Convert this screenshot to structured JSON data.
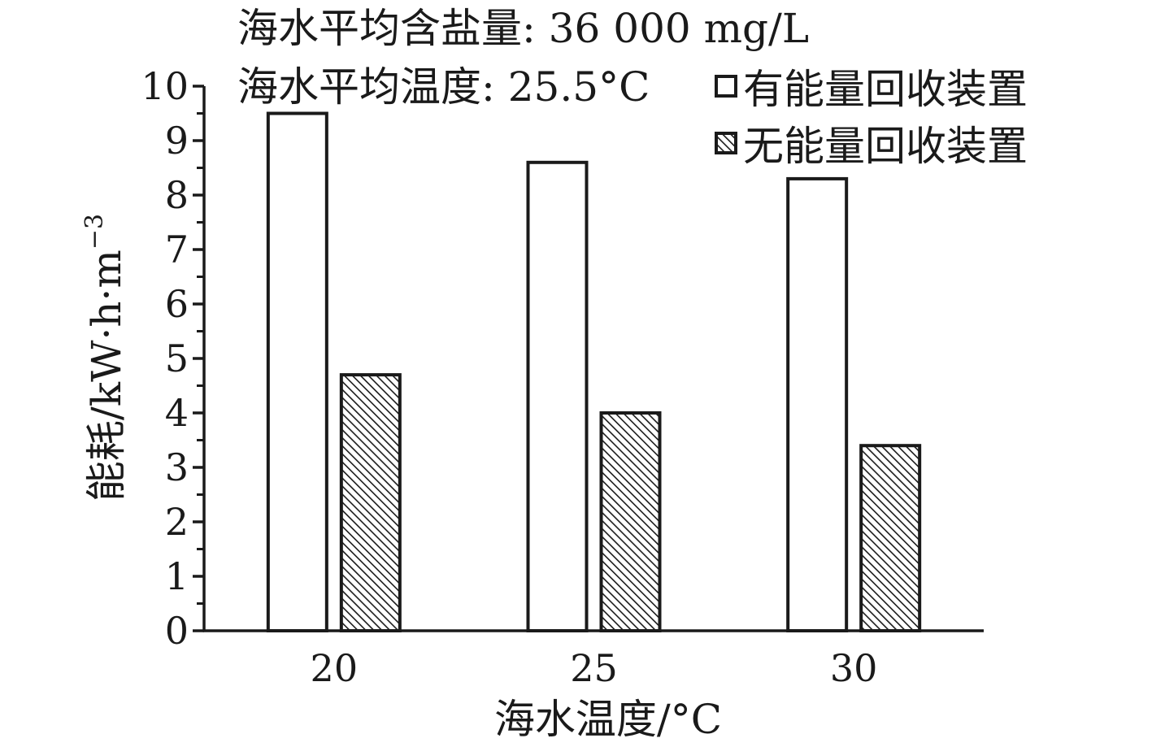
{
  "chart_data": {
    "type": "bar",
    "categories": [
      "20",
      "25",
      "30"
    ],
    "series": [
      {
        "name": "有能量回收装置",
        "values": [
          9.5,
          8.6,
          8.3
        ],
        "fill": "#ffffff",
        "pattern": "none"
      },
      {
        "name": "无能量回收装置",
        "values": [
          4.7,
          4.0,
          3.4
        ],
        "fill": "#ffffff",
        "pattern": "diagonal-hatch"
      }
    ],
    "xlabel": "海水温度/°C",
    "ylabel": "能耗/kW·h·m",
    "ylabel_superscript": "−3",
    "ylim": [
      0,
      10
    ],
    "yticks": [
      "0",
      "1",
      "2",
      "3",
      "4",
      "5",
      "6",
      "7",
      "8",
      "9",
      "10"
    ],
    "annotations": [
      "海水平均含盐量: 36 000 mg/L",
      "海水平均温度: 25.5°C"
    ],
    "legend_position": "top-right",
    "grid": false,
    "colors": {
      "axis": "#1a1a1a",
      "bar_border": "#1a1a1a",
      "hatch": "#1a1a1a"
    }
  }
}
